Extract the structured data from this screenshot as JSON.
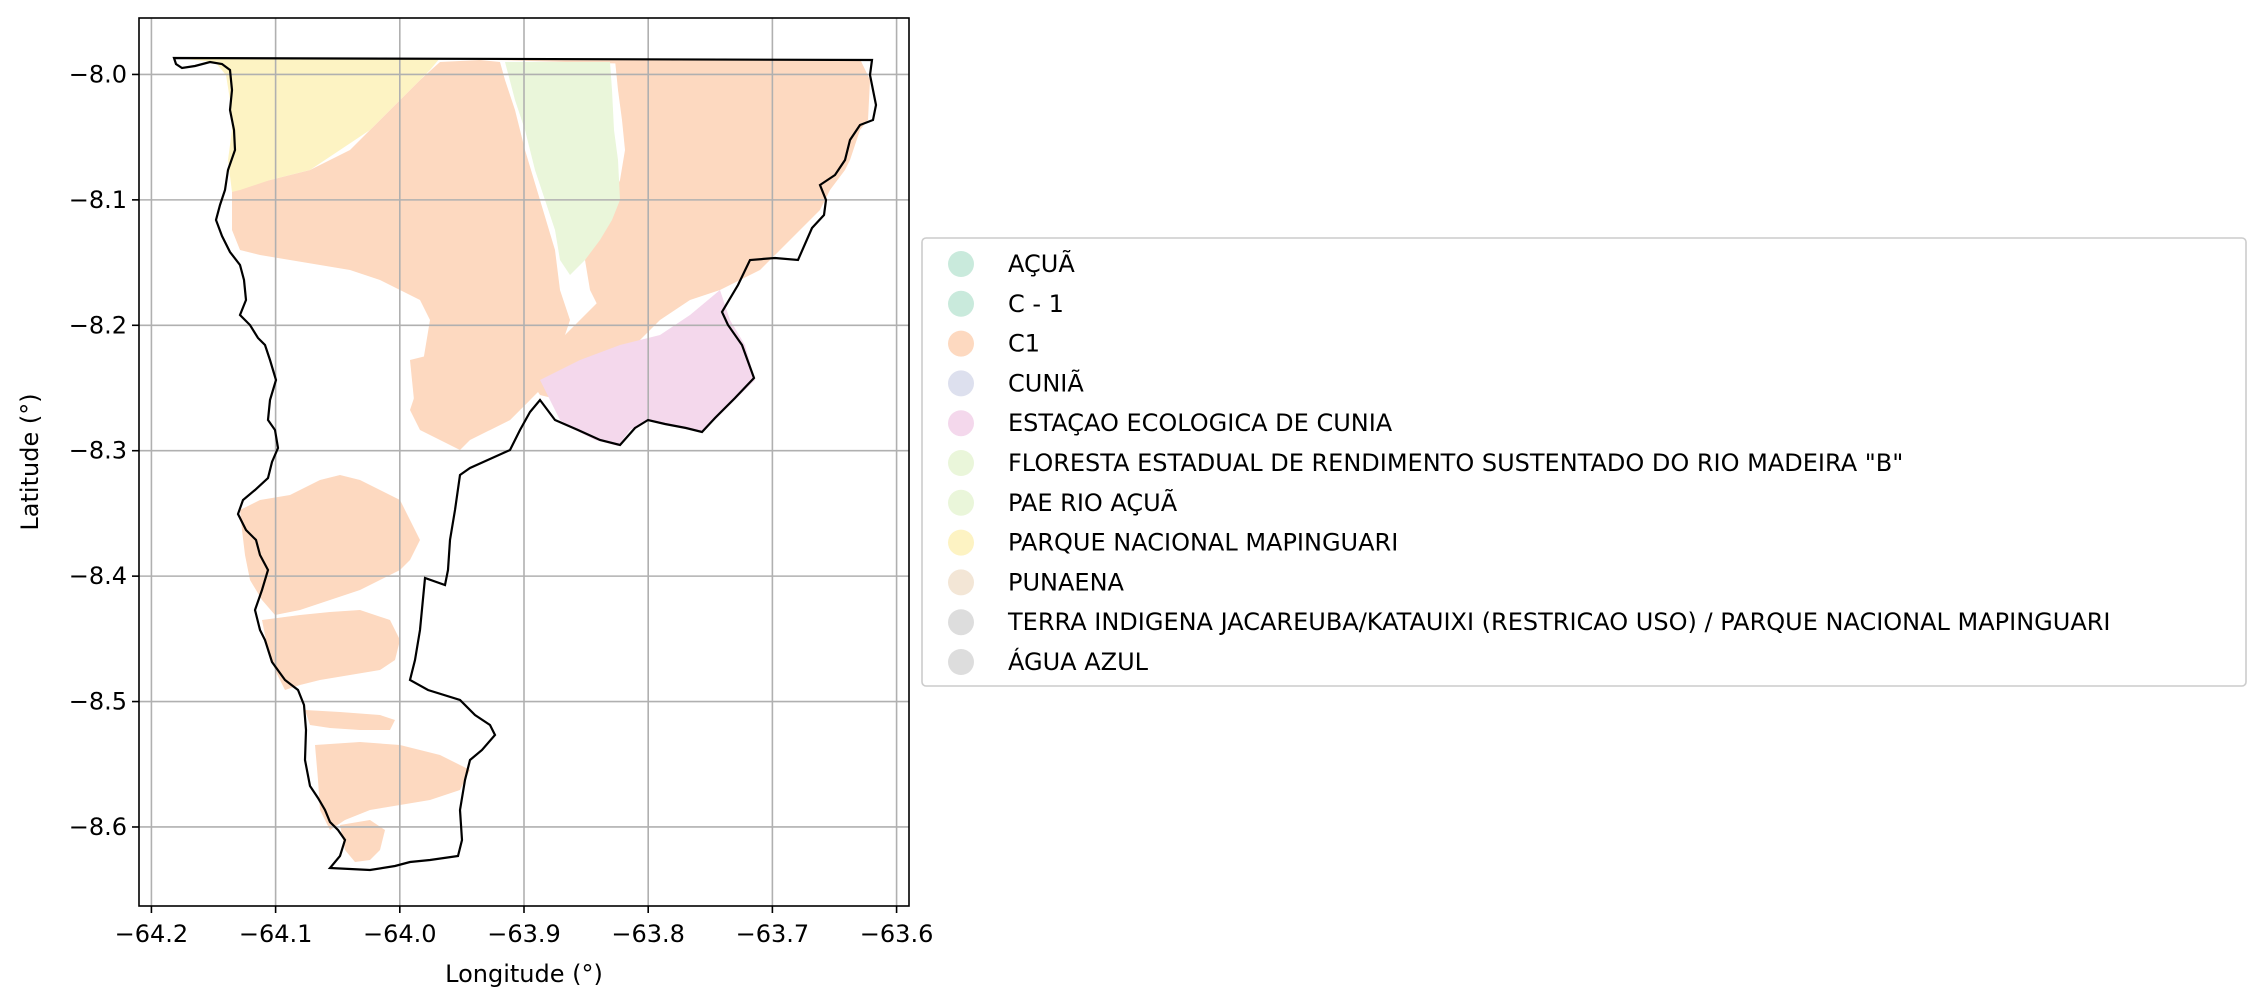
{
  "axes": {
    "xlabel": "Longitude (°)",
    "ylabel": "Latitude (°)",
    "xlim": [
      -64.21,
      -63.59
    ],
    "ylim": [
      -8.663,
      -7.955
    ],
    "xticks": [
      -64.2,
      -64.1,
      -64.0,
      -63.9,
      -63.8,
      -63.7,
      -63.6
    ],
    "yticks": [
      -8.0,
      -8.1,
      -8.2,
      -8.3,
      -8.4,
      -8.5,
      -8.6
    ],
    "xtick_labels": [
      "−64.2",
      "−64.1",
      "−64.0",
      "−63.9",
      "−63.8",
      "−63.7",
      "−63.6"
    ],
    "ytick_labels": [
      "−8.0",
      "−8.1",
      "−8.2",
      "−8.3",
      "−8.4",
      "−8.5",
      "−8.6"
    ],
    "grid": true
  },
  "colors": {
    "boundary": "#000000",
    "grid": "#b0b0b0"
  },
  "legend": {
    "placement": "right",
    "items": [
      {
        "label": "AÇUÃ",
        "color": "#c9eadc"
      },
      {
        "label": "C - 1",
        "color": "#c9eadc"
      },
      {
        "label": "C1",
        "color": "#fdd9c0"
      },
      {
        "label": "CUNIÃ",
        "color": "#dde0ee"
      },
      {
        "label": "ESTAÇAO ECOLOGICA DE CUNIA",
        "color": "#f4d8ec"
      },
      {
        "label": "FLORESTA ESTADUAL DE RENDIMENTO SUSTENTADO DO RIO MADEIRA \"B\"",
        "color": "#eaf6da"
      },
      {
        "label": "PAE RIO AÇUÃ",
        "color": "#eaf6da"
      },
      {
        "label": "PARQUE NACIONAL MAPINGUARI",
        "color": "#fdf3c3"
      },
      {
        "label": "PUNAENA",
        "color": "#f3e6d6"
      },
      {
        "label": "TERRA INDIGENA JACAREUBA/KATAUIXI (RESTRICAO USO) / PARQUE NACIONAL MAPINGUARI",
        "color": "#dddddd"
      },
      {
        "label": "ÁGUA AZUL",
        "color": "#dddddd"
      }
    ]
  }
}
